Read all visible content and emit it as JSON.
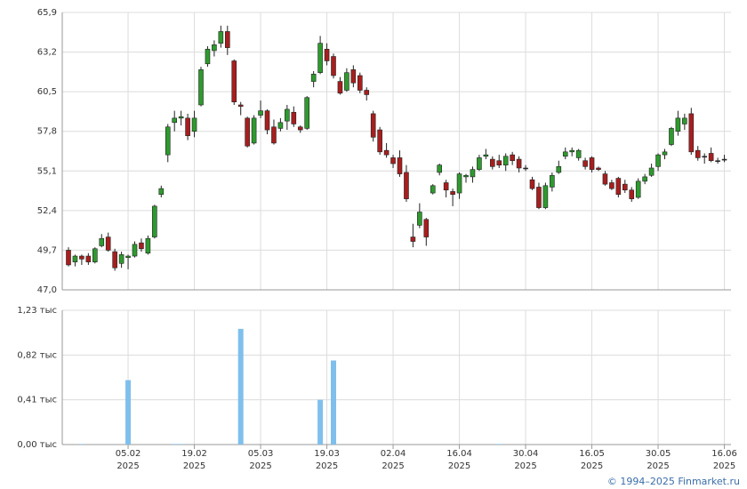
{
  "chart_data": [
    {
      "type": "candlestick",
      "open": [
        49.7,
        48.9,
        49.3,
        49.3,
        48.9,
        50.0,
        50.6,
        49.6,
        48.8,
        49.2,
        49.3,
        50.2,
        49.5,
        50.6,
        53.5,
        56.2,
        58.4,
        58.7,
        58.7,
        57.8,
        59.6,
        62.4,
        63.3,
        63.8,
        64.6,
        62.6,
        59.6,
        58.7,
        57.0,
        58.9,
        59.2,
        58.1,
        58.0,
        58.5,
        59.1,
        58.1,
        58.0,
        61.2,
        61.8,
        63.4,
        62.9,
        61.2,
        60.6,
        62.0,
        61.6,
        60.6,
        59.0,
        57.9,
        56.5,
        56.0,
        56.0,
        55.0,
        50.6,
        51.4,
        51.8,
        53.6,
        55.0,
        54.3,
        53.7,
        53.6,
        54.7,
        54.7,
        55.2,
        56.1,
        55.9,
        55.8,
        55.5,
        56.2,
        55.9,
        55.3,
        54.5,
        54.0,
        52.6,
        54.0,
        55.0,
        56.1,
        56.4,
        56.0,
        55.8,
        56.0,
        55.3,
        54.9,
        54.3,
        54.6,
        54.2,
        53.8,
        53.3,
        54.4,
        54.8,
        55.4,
        56.2,
        56.9,
        57.8,
        58.3,
        59.0,
        56.5,
        56.1,
        56.3,
        55.8,
        55.9
      ],
      "high": [
        49.9,
        49.4,
        49.4,
        49.5,
        49.9,
        50.8,
        50.9,
        49.8,
        49.6,
        49.4,
        50.3,
        50.5,
        50.7,
        52.8,
        54.1,
        58.3,
        59.2,
        59.2,
        59.0,
        59.2,
        62.2,
        63.6,
        64.0,
        65.0,
        65.0,
        62.7,
        59.8,
        58.8,
        58.9,
        59.9,
        59.3,
        58.6,
        58.7,
        59.6,
        59.5,
        58.2,
        60.2,
        61.9,
        64.3,
        63.8,
        63.1,
        61.5,
        62.1,
        62.3,
        61.8,
        60.8,
        59.2,
        58.1,
        57.0,
        56.2,
        56.5,
        55.5,
        51.5,
        52.9,
        51.9,
        54.2,
        55.6,
        54.5,
        53.9,
        55.0,
        54.9,
        55.4,
        56.2,
        56.6,
        56.1,
        56.2,
        56.3,
        56.4,
        56.1,
        55.5,
        54.7,
        54.3,
        54.3,
        55.0,
        55.8,
        56.7,
        56.7,
        56.6,
        56.0,
        56.1,
        55.4,
        55.1,
        54.5,
        54.7,
        54.5,
        54.0,
        54.6,
        54.9,
        55.6,
        56.3,
        56.6,
        58.1,
        59.2,
        59.0,
        59.4,
        56.8,
        56.3,
        56.7,
        56.0,
        56.2
      ],
      "low": [
        48.6,
        48.6,
        48.7,
        48.7,
        48.8,
        49.9,
        49.6,
        48.3,
        48.5,
        48.4,
        49.2,
        49.6,
        49.4,
        50.5,
        53.3,
        55.7,
        57.8,
        58.2,
        57.2,
        57.4,
        59.5,
        62.2,
        62.9,
        63.5,
        63.0,
        59.6,
        58.9,
        56.7,
        56.9,
        58.7,
        57.6,
        56.9,
        57.8,
        57.9,
        58.1,
        57.7,
        57.9,
        60.8,
        61.7,
        62.3,
        61.4,
        60.3,
        60.5,
        60.8,
        60.4,
        59.9,
        57.1,
        56.2,
        56.0,
        55.3,
        54.7,
        53.0,
        49.9,
        51.2,
        50.0,
        53.5,
        54.8,
        53.3,
        52.7,
        53.2,
        54.3,
        54.3,
        55.1,
        55.9,
        55.2,
        55.3,
        55.1,
        55.5,
        55.0,
        55.1,
        53.8,
        52.5,
        52.5,
        53.7,
        54.9,
        55.9,
        56.1,
        55.8,
        55.2,
        55.0,
        55.1,
        54.1,
        53.8,
        53.3,
        53.6,
        53.0,
        53.2,
        54.2,
        54.7,
        55.1,
        55.9,
        56.8,
        57.5,
        57.9,
        56.2,
        55.8,
        55.6,
        55.7,
        55.6,
        55.7
      ],
      "close": [
        48.7,
        49.3,
        49.1,
        48.9,
        49.8,
        50.5,
        49.7,
        48.5,
        49.4,
        49.3,
        50.1,
        49.8,
        50.5,
        52.7,
        53.9,
        58.1,
        58.7,
        58.8,
        57.5,
        58.7,
        62.0,
        63.4,
        63.7,
        64.6,
        63.5,
        59.8,
        59.5,
        56.8,
        58.7,
        59.2,
        57.9,
        57.0,
        58.4,
        59.3,
        58.3,
        57.9,
        60.1,
        61.7,
        63.8,
        62.6,
        61.6,
        60.4,
        61.8,
        61.1,
        60.6,
        60.3,
        57.4,
        56.4,
        56.2,
        55.6,
        54.9,
        53.2,
        50.3,
        52.3,
        50.6,
        54.1,
        55.5,
        53.8,
        53.5,
        54.9,
        54.8,
        55.2,
        56.0,
        56.2,
        55.4,
        55.5,
        56.1,
        55.8,
        55.3,
        55.3,
        53.9,
        52.6,
        54.1,
        54.8,
        55.4,
        56.4,
        56.5,
        56.5,
        55.4,
        55.2,
        55.2,
        54.2,
        53.9,
        53.5,
        53.8,
        53.2,
        54.4,
        54.7,
        55.3,
        56.2,
        56.4,
        58.0,
        58.7,
        58.7,
        56.4,
        56.0,
        56.1,
        55.8,
        55.8,
        55.9
      ],
      "ylim": [
        47.0,
        65.9
      ],
      "yticks": [
        {
          "value": 47.0,
          "label": "47,0"
        },
        {
          "value": 49.7,
          "label": "49,7"
        },
        {
          "value": 52.4,
          "label": "52,4"
        },
        {
          "value": 55.1,
          "label": "55,1"
        },
        {
          "value": 57.8,
          "label": "57,8"
        },
        {
          "value": 60.5,
          "label": "60,5"
        },
        {
          "value": 63.2,
          "label": "63,2"
        },
        {
          "value": 65.9,
          "label": "65,9"
        }
      ],
      "up_color": "#2e9a2e",
      "down_color": "#a81e1e",
      "grid": true
    },
    {
      "type": "bar",
      "categories": [
        null,
        null,
        null,
        null,
        null,
        null,
        null,
        null,
        null,
        "05.02\n2025",
        null,
        null,
        null,
        null,
        null,
        null,
        null,
        null,
        null,
        "19.02\n2025",
        null,
        null,
        null,
        null,
        null,
        null,
        null,
        null,
        null,
        "05.03\n2025",
        null,
        null,
        null,
        null,
        null,
        null,
        null,
        null,
        null,
        "19.03\n2025",
        null,
        null,
        null,
        null,
        null,
        null,
        null,
        null,
        null,
        "02.04\n2025",
        null,
        null,
        null,
        null,
        null,
        null,
        null,
        null,
        null,
        "16.04\n2025",
        null,
        null,
        null,
        null,
        null,
        null,
        null,
        null,
        null,
        "30.04\n2025",
        null,
        null,
        null,
        null,
        null,
        null,
        null,
        null,
        null,
        "16.05\n2025",
        null,
        null,
        null,
        null,
        null,
        null,
        null,
        null,
        null,
        "30.05\n2025",
        null,
        null,
        null,
        null,
        null,
        null,
        null,
        null,
        null,
        "16.06\n2025"
      ],
      "values": [
        0,
        0,
        0.005,
        0,
        0,
        0,
        0,
        0,
        0,
        0.59,
        0,
        0,
        0,
        0,
        0,
        0,
        0.005,
        0.005,
        0,
        0,
        0,
        0,
        0,
        0,
        0,
        0,
        1.06,
        0,
        0,
        0,
        0,
        0,
        0,
        0,
        0,
        0,
        0,
        0,
        0.41,
        0,
        0.77,
        0,
        0,
        0,
        0,
        0,
        0,
        0,
        0,
        0,
        0,
        0,
        0,
        0,
        0,
        0,
        0,
        0,
        0,
        0,
        0,
        0,
        0,
        0,
        0,
        0.005,
        0,
        0,
        0,
        0,
        0,
        0,
        0,
        0,
        0,
        0,
        0,
        0,
        0,
        0,
        0,
        0,
        0,
        0,
        0,
        0,
        0,
        0,
        0,
        0,
        0,
        0,
        0,
        0,
        0,
        0,
        0,
        0,
        0,
        0
      ],
      "color": "#7fbfec",
      "ylim": [
        0,
        1.23
      ],
      "yticks": [
        {
          "value": 0,
          "label": "0,00 тыс"
        },
        {
          "value": 0.41,
          "label": "0,41 тыс"
        },
        {
          "value": 0.82,
          "label": "0,82 тыс"
        },
        {
          "value": 1.23,
          "label": "1,23 тыс"
        }
      ],
      "grid": true
    }
  ],
  "footer": "© 1994–2025 Finmarket.ru"
}
